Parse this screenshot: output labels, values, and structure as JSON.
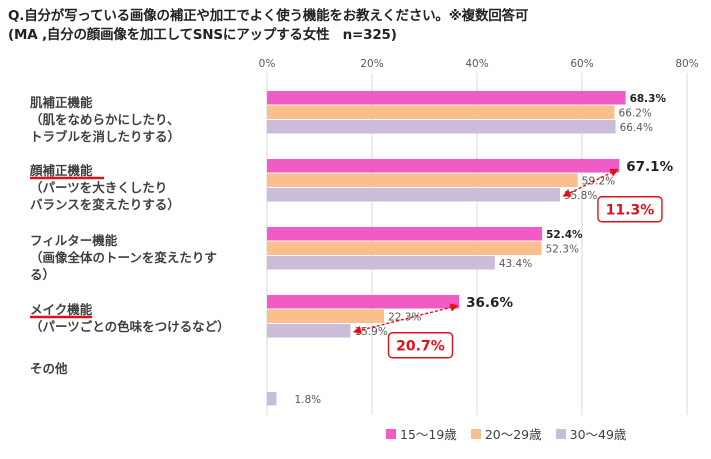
{
  "title": {
    "line1": "Q.自分が写っている画像の補正や加工でよく使う機能をお教えください。※複数回答可",
    "line2": "(MA ,自分の顔画像を加工してSNSにアップする女性　n=325)"
  },
  "colors": {
    "s1": "#f15bc6",
    "s2": "#fbbf8e",
    "s3": "#cbbdd9",
    "grid": "#d9d9d9",
    "annotation": "#e0101a"
  },
  "chart_data": {
    "type": "bar",
    "orientation": "horizontal",
    "xlim": [
      0,
      80
    ],
    "x_ticks": [
      "0%",
      "20%",
      "40%",
      "60%",
      "80%"
    ],
    "grid": true,
    "legend_position": "bottom-right",
    "categories": [
      {
        "lines": [
          "肌補正機能",
          "（肌をなめらかにしたり、",
          "トラブルを消したりする）"
        ]
      },
      {
        "lines": [
          "顔補正機能",
          "（パーツを大きくしたり",
          "バランスを変えたりする）"
        ]
      },
      {
        "lines": [
          "フィルター機能",
          "（画像全体のトーンを変えたりす",
          "る）"
        ]
      },
      {
        "lines": [
          "メイク機能",
          "（パーツごとの色味をつけるなど）"
        ]
      },
      {
        "lines": [
          "その他"
        ]
      }
    ],
    "series": [
      {
        "name": "15〜19歳",
        "values": [
          68.3,
          67.1,
          52.4,
          36.6,
          null
        ],
        "labels": [
          "68.3%",
          "67.1%",
          "52.4%",
          "36.6%",
          ""
        ]
      },
      {
        "name": "20〜29歳",
        "values": [
          66.2,
          59.2,
          52.3,
          22.3,
          null
        ],
        "labels": [
          "66.2%",
          "59.2%",
          "52.3%",
          "22.3%",
          ""
        ]
      },
      {
        "name": "30〜49歳",
        "values": [
          66.4,
          55.8,
          43.4,
          15.9,
          1.8
        ],
        "labels": [
          "66.4%",
          "55.8%",
          "43.4%",
          "15.9%",
          "1.8%"
        ]
      }
    ],
    "annotations": [
      {
        "category_index": 1,
        "text": "11.3%"
      },
      {
        "category_index": 3,
        "text": "20.7%"
      }
    ]
  }
}
